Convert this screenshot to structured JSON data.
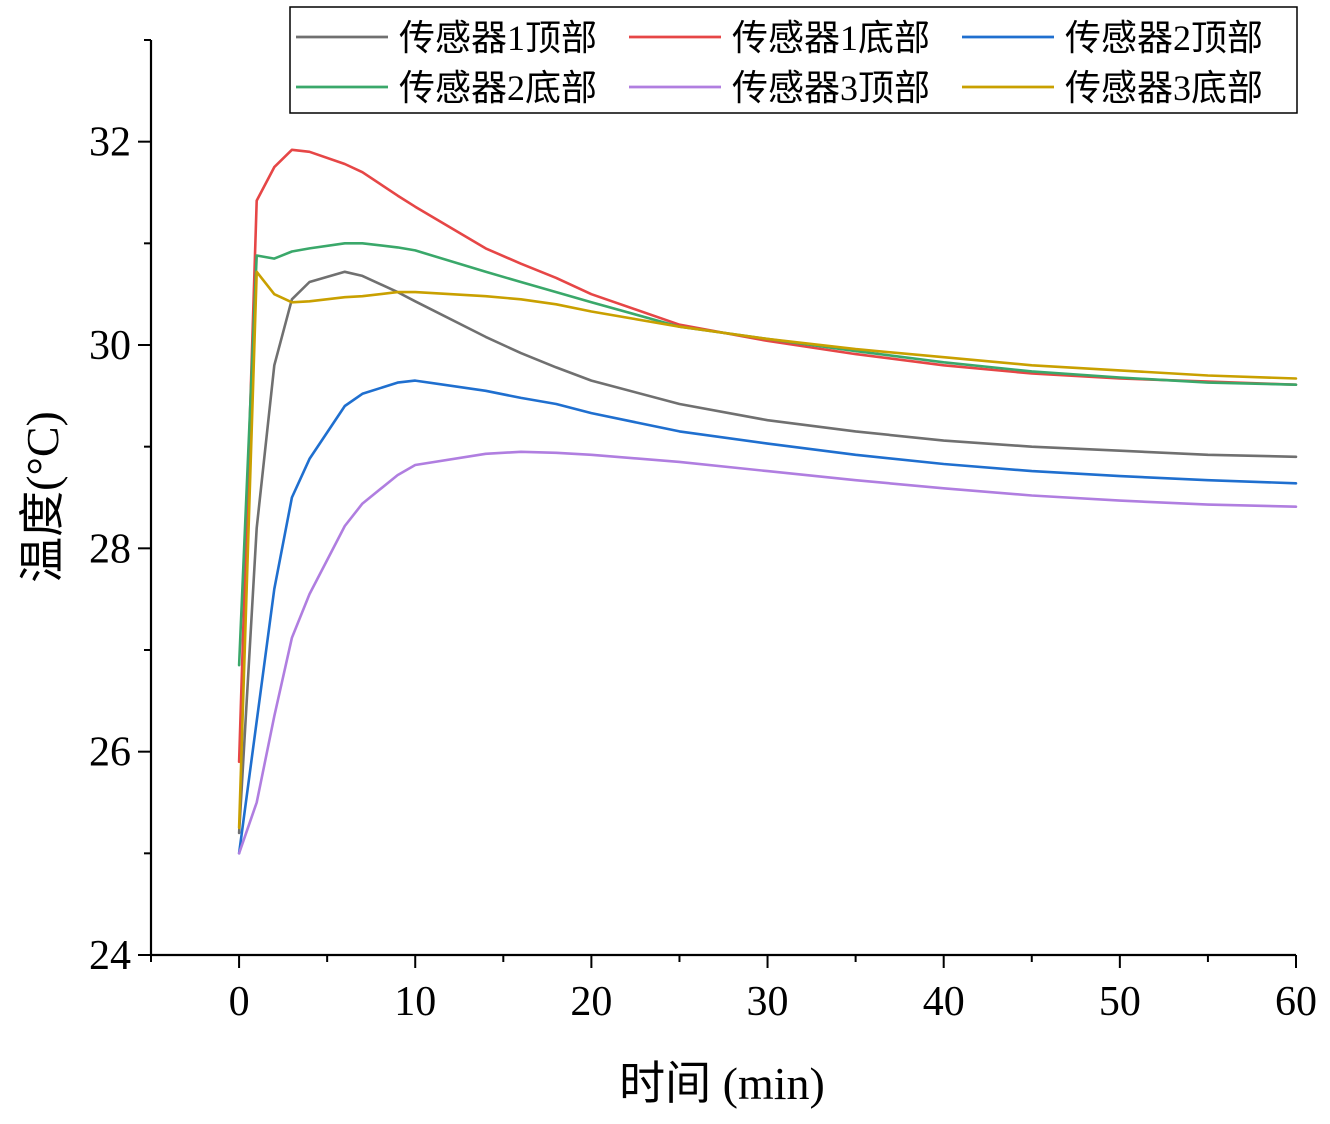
{
  "chart_data": {
    "type": "line",
    "title": "",
    "xlabel": "时间 (min)",
    "ylabel": "温度(°C)",
    "xlim": [
      -5,
      60
    ],
    "ylim": [
      24,
      33
    ],
    "xticks": [
      0,
      10,
      20,
      30,
      40,
      50,
      60
    ],
    "yticks": [
      24,
      26,
      28,
      30,
      32
    ],
    "grid": false,
    "legend_position": "top-right",
    "x": [
      0,
      1,
      2,
      3,
      4,
      6,
      7,
      9,
      10,
      14,
      16,
      18,
      20,
      25,
      30,
      35,
      40,
      45,
      50,
      55,
      60
    ],
    "series": [
      {
        "name": "传感器1顶部",
        "color": "#707070",
        "values": [
          25.2,
          28.2,
          29.8,
          30.45,
          30.62,
          30.72,
          30.68,
          30.52,
          30.43,
          30.08,
          29.92,
          29.78,
          29.65,
          29.42,
          29.26,
          29.15,
          29.06,
          29.0,
          28.96,
          28.92,
          28.9
        ]
      },
      {
        "name": "传感器1底部",
        "color": "#e64646",
        "values": [
          25.9,
          31.42,
          31.75,
          31.92,
          31.9,
          31.78,
          31.7,
          31.47,
          31.36,
          30.95,
          30.8,
          30.66,
          30.5,
          30.2,
          30.04,
          29.91,
          29.8,
          29.72,
          29.67,
          29.64,
          29.61
        ]
      },
      {
        "name": "传感器2顶部",
        "color": "#1f6fcf",
        "values": [
          25.0,
          26.3,
          27.6,
          28.5,
          28.88,
          29.4,
          29.52,
          29.63,
          29.65,
          29.55,
          29.48,
          29.42,
          29.33,
          29.15,
          29.03,
          28.92,
          28.83,
          28.76,
          28.71,
          28.67,
          28.64
        ]
      },
      {
        "name": "传感器2底部",
        "color": "#3aa86a",
        "values": [
          26.85,
          30.88,
          30.85,
          30.92,
          30.95,
          31.0,
          31.0,
          30.96,
          30.93,
          30.72,
          30.62,
          30.52,
          30.42,
          30.18,
          30.06,
          29.94,
          29.83,
          29.74,
          29.68,
          29.63,
          29.61
        ]
      },
      {
        "name": "传感器3顶部",
        "color": "#b07ee0",
        "values": [
          25.0,
          25.5,
          26.35,
          27.12,
          27.55,
          28.22,
          28.44,
          28.72,
          28.82,
          28.93,
          28.95,
          28.94,
          28.92,
          28.85,
          28.76,
          28.67,
          28.59,
          28.52,
          28.47,
          28.43,
          28.41
        ]
      },
      {
        "name": "传感器3底部",
        "color": "#c9a000",
        "values": [
          25.25,
          30.72,
          30.5,
          30.42,
          30.43,
          30.47,
          30.48,
          30.52,
          30.52,
          30.48,
          30.45,
          30.4,
          30.33,
          30.18,
          30.06,
          29.96,
          29.88,
          29.8,
          29.75,
          29.7,
          29.67
        ]
      }
    ]
  }
}
